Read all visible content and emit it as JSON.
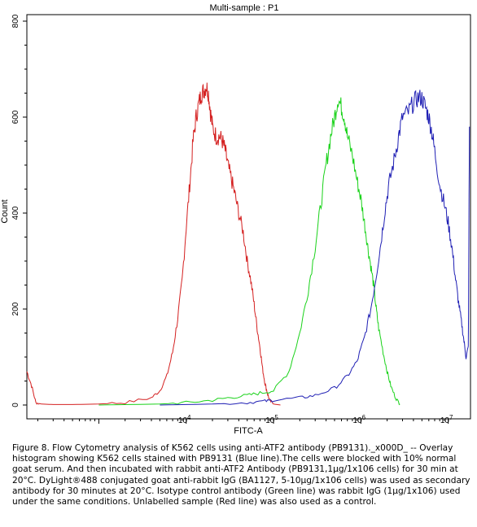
{
  "chart_data": {
    "type": "line",
    "title": "Multi-sample : P1",
    "xlabel": "FITC-A",
    "ylabel": "Count",
    "x_scale": "log",
    "xlim": [
      150,
      18000000
    ],
    "ylim": [
      0,
      800
    ],
    "x_ticks": [
      {
        "value": 10000,
        "base": "10",
        "exp": "4"
      },
      {
        "value": 100000,
        "base": "10",
        "exp": "5"
      },
      {
        "value": 1000000,
        "base": "10",
        "exp": "6"
      },
      {
        "value": 10000000,
        "base": "10",
        "exp": "7"
      }
    ],
    "y_ticks": [
      0,
      200,
      400,
      600,
      800
    ],
    "series": [
      {
        "color": "#d42020",
        "x": [
          150,
          170,
          190,
          220,
          300,
          500,
          1000,
          2000,
          4000,
          5000,
          6000,
          7000,
          8000,
          9000,
          10000,
          11000,
          12000,
          13000,
          14000,
          15000,
          16000,
          17000,
          18000,
          19000,
          20000,
          22000,
          24000,
          26000,
          28000,
          30000,
          33000,
          36000,
          40000,
          45000,
          50000,
          55000,
          60000,
          65000,
          70000,
          75000,
          80000,
          85000,
          90000,
          100000,
          120000
        ],
        "y": [
          70,
          40,
          5,
          2,
          1,
          1,
          2,
          5,
          15,
          30,
          60,
          110,
          180,
          260,
          370,
          460,
          550,
          600,
          630,
          650,
          655,
          665,
          650,
          610,
          580,
          560,
          560,
          550,
          530,
          500,
          470,
          440,
          400,
          360,
          300,
          260,
          210,
          160,
          120,
          75,
          45,
          25,
          10,
          2,
          0
        ]
      },
      {
        "color": "#19d219",
        "x": [
          1000,
          5000,
          10000,
          20000,
          30000,
          50000,
          70000,
          100000,
          150000,
          200000,
          250000,
          300000,
          350000,
          400000,
          450000,
          500000,
          550000,
          600000,
          650000,
          700000,
          800000,
          900000,
          1000000,
          1100000,
          1200000,
          1300000,
          1400000,
          1500000,
          1600000,
          1800000,
          2000000,
          2200000,
          2500000,
          2800000
        ],
        "y": [
          0,
          2,
          5,
          10,
          15,
          20,
          25,
          30,
          70,
          150,
          240,
          330,
          420,
          500,
          560,
          600,
          640,
          620,
          600,
          560,
          520,
          470,
          430,
          380,
          330,
          290,
          250,
          200,
          160,
          110,
          70,
          40,
          15,
          2
        ]
      },
      {
        "color": "#1f1fb4",
        "x": [
          5000,
          20000,
          50000,
          80000,
          100000,
          200000,
          300000,
          500000,
          700000,
          900000,
          1100000,
          1300000,
          1500000,
          1700000,
          1900000,
          2100000,
          2400000,
          2700000,
          3000000,
          3500000,
          4000000,
          4500000,
          5000000,
          5500000,
          6000000,
          6500000,
          7000000,
          8000000,
          9000000,
          10000000,
          11000000,
          12000000,
          13000000,
          14000000,
          15000000,
          16000000,
          17000000,
          17500000
        ],
        "y": [
          0,
          2,
          5,
          8,
          10,
          15,
          20,
          35,
          60,
          90,
          140,
          200,
          270,
          340,
          410,
          460,
          510,
          560,
          600,
          610,
          630,
          640,
          640,
          620,
          600,
          570,
          530,
          460,
          420,
          380,
          330,
          270,
          220,
          180,
          140,
          100,
          120,
          580
        ]
      }
    ]
  },
  "caption": "Figure 8. Flow Cytometry analysis of K562 cells using anti-ATF2 antibody (PB9131)._x000D_ -- Overlay histogram showing K562 cells stained with PB9131 (Blue line).The cells were blocked with 10% normal goat serum. And then incubated with rabbit anti-ATF2 Antibody (PB9131,1μg/1x106 cells) for 30 min at 20°C. DyLight®488 conjugated goat anti-rabbit IgG (BA1127, 5-10μg/1x106 cells) was used as secondary antibody for 30 minutes at 20°C. Isotype control antibody (Green line) was rabbit IgG (1μg/1x106) used under the same conditions. Unlabelled sample (Red line) was also used as a control."
}
